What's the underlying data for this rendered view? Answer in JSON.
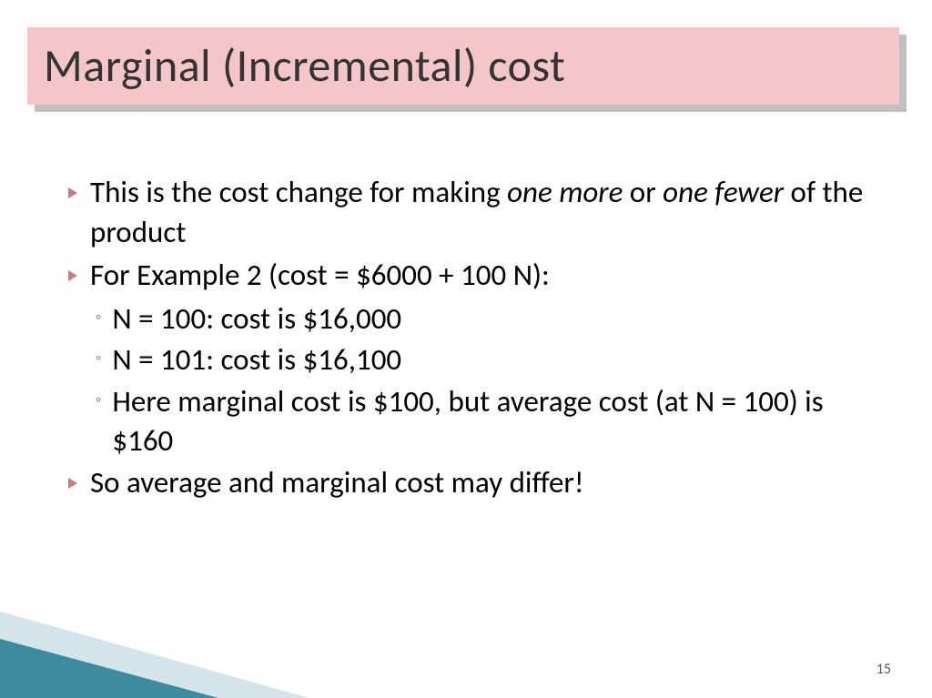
{
  "slide": {
    "title": "Marginal (Incremental) cost",
    "page_number": "15",
    "bullets": {
      "b1_pre": "This is the cost change for making ",
      "b1_italic1": "one more",
      "b1_mid": " or ",
      "b1_italic2": "one fewer",
      "b1_post": " of the product",
      "b2": "For Example 2 (cost = $6000 + 100 N):",
      "b2_sub1": "N = 100: cost is $16,000",
      "b2_sub2": "N = 101: cost is $16,100",
      "b2_sub3": "Here marginal cost is $100, but average cost (at N = 100) is $160",
      "b3": "So average and marginal cost may differ!"
    }
  },
  "style": {
    "title_bg": "#f4c6c8",
    "title_shadow": "#c0c0c0",
    "title_text_color": "#333333",
    "title_fontsize": 50,
    "body_fontsize": 33,
    "bullet_triangle_color": "#c97a7a",
    "bullet_circle_color": "#888888",
    "corner_dark": "#3d8b9e",
    "corner_light": "rgba(130,180,195,0.35)",
    "page_number_color": "#595959",
    "background": "#ffffff"
  }
}
